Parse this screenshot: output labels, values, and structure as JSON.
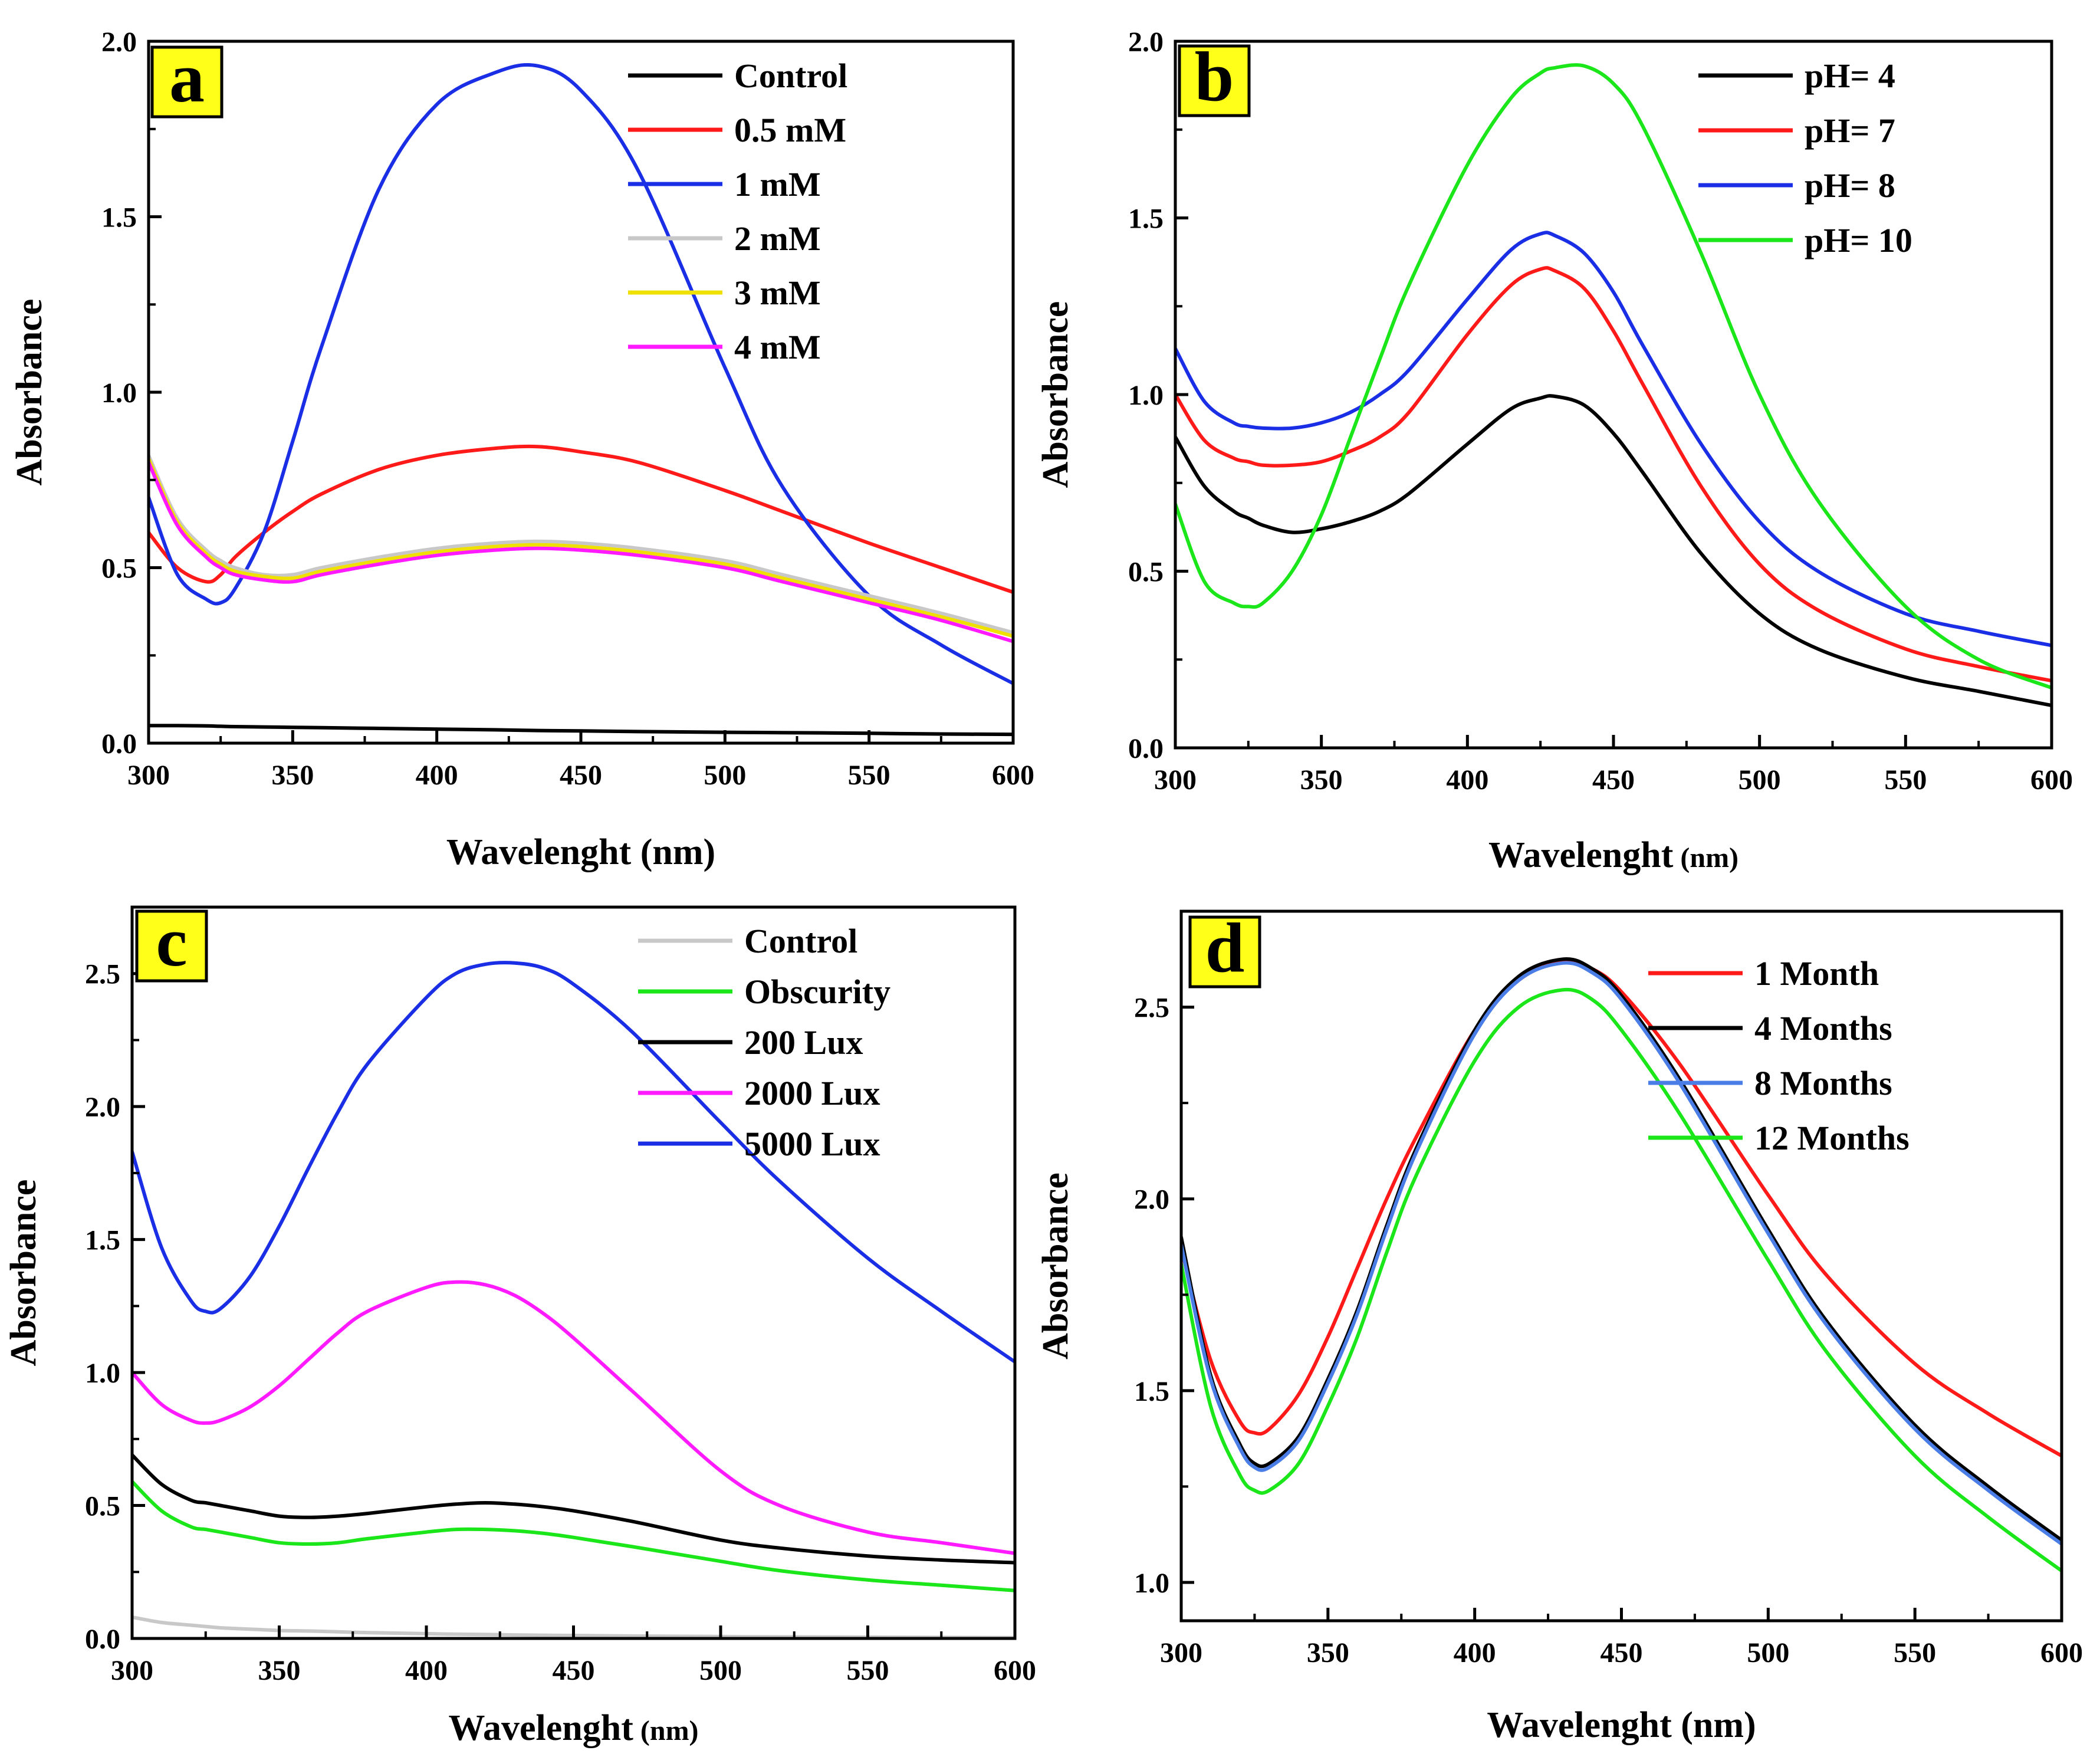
{
  "chart_data": [
    {
      "type": "line",
      "panel_label": "a",
      "xlabel": "Wavelenght (nm)",
      "xlabel_unit_small": false,
      "ylabel": "Absorbance",
      "xlim": [
        300,
        600
      ],
      "ylim": [
        0,
        2.0
      ],
      "x_ticks": [
        "300",
        "350",
        "400",
        "450",
        "500",
        "550",
        "600"
      ],
      "y_ticks": [
        "0.0",
        "0.5",
        "1.0",
        "1.5",
        "2.0"
      ],
      "legend_position": "top-right",
      "x": [
        300,
        310,
        320,
        325,
        330,
        340,
        350,
        360,
        380,
        400,
        420,
        435,
        450,
        470,
        500,
        520,
        550,
        575,
        600
      ],
      "series": [
        {
          "name": "Control",
          "color": "#000000",
          "values": [
            0.05,
            0.05,
            0.049,
            0.048,
            0.047,
            0.046,
            0.045,
            0.044,
            0.042,
            0.04,
            0.038,
            0.036,
            0.035,
            0.033,
            0.031,
            0.03,
            0.028,
            0.026,
            0.025
          ]
        },
        {
          "name": "0.5 mM",
          "color": "#ff1a1a",
          "values": [
            0.6,
            0.5,
            0.46,
            0.48,
            0.53,
            0.6,
            0.66,
            0.71,
            0.78,
            0.82,
            0.84,
            0.845,
            0.83,
            0.8,
            0.72,
            0.66,
            0.57,
            0.5,
            0.43
          ]
        },
        {
          "name": "1 mM",
          "color": "#1a2ee6",
          "values": [
            0.7,
            0.48,
            0.41,
            0.4,
            0.44,
            0.6,
            0.86,
            1.13,
            1.58,
            1.82,
            1.91,
            1.93,
            1.86,
            1.63,
            1.07,
            0.73,
            0.42,
            0.28,
            0.17
          ]
        },
        {
          "name": "2 mM",
          "color": "#c8c8c8",
          "values": [
            0.82,
            0.64,
            0.55,
            0.52,
            0.5,
            0.48,
            0.48,
            0.5,
            0.53,
            0.555,
            0.57,
            0.575,
            0.57,
            0.555,
            0.52,
            0.48,
            0.42,
            0.37,
            0.315
          ]
        },
        {
          "name": "3 mM",
          "color": "#f0e000",
          "values": [
            0.81,
            0.63,
            0.54,
            0.51,
            0.49,
            0.475,
            0.47,
            0.49,
            0.52,
            0.545,
            0.56,
            0.565,
            0.56,
            0.545,
            0.51,
            0.47,
            0.41,
            0.36,
            0.305
          ]
        },
        {
          "name": "4 mM",
          "color": "#ff1aff",
          "values": [
            0.8,
            0.62,
            0.53,
            0.5,
            0.48,
            0.465,
            0.46,
            0.48,
            0.51,
            0.535,
            0.55,
            0.555,
            0.55,
            0.535,
            0.5,
            0.46,
            0.4,
            0.35,
            0.29
          ]
        }
      ]
    },
    {
      "type": "line",
      "panel_label": "b",
      "xlabel": "Wavelenght",
      "xlabel_unit": "(nm)",
      "xlabel_unit_small": true,
      "ylabel": "Absorbance",
      "xlim": [
        300,
        600
      ],
      "ylim": [
        0,
        2.0
      ],
      "x_ticks": [
        "300",
        "350",
        "400",
        "450",
        "500",
        "550",
        "600"
      ],
      "y_ticks": [
        "0.0",
        "0.5",
        "1.0",
        "1.5",
        "2.0"
      ],
      "legend_position": "top-right",
      "x": [
        300,
        310,
        320,
        325,
        330,
        340,
        350,
        360,
        370,
        380,
        400,
        415,
        425,
        430,
        440,
        450,
        460,
        480,
        500,
        520,
        550,
        575,
        600
      ],
      "series": [
        {
          "name": "pH= 4",
          "color": "#000000",
          "values": [
            0.88,
            0.74,
            0.67,
            0.65,
            0.63,
            0.61,
            0.62,
            0.64,
            0.67,
            0.72,
            0.86,
            0.96,
            0.99,
            0.995,
            0.97,
            0.89,
            0.78,
            0.55,
            0.38,
            0.28,
            0.2,
            0.16,
            0.12
          ]
        },
        {
          "name": "pH= 7",
          "color": "#ff1a1a",
          "values": [
            1.0,
            0.87,
            0.82,
            0.81,
            0.8,
            0.8,
            0.81,
            0.84,
            0.88,
            0.95,
            1.17,
            1.31,
            1.355,
            1.35,
            1.3,
            1.18,
            1.03,
            0.74,
            0.52,
            0.39,
            0.28,
            0.23,
            0.19
          ]
        },
        {
          "name": "pH= 8",
          "color": "#1a2ee6",
          "values": [
            1.13,
            0.98,
            0.92,
            0.91,
            0.905,
            0.905,
            0.92,
            0.95,
            1.0,
            1.07,
            1.27,
            1.41,
            1.455,
            1.45,
            1.4,
            1.29,
            1.14,
            0.86,
            0.64,
            0.5,
            0.38,
            0.33,
            0.29
          ]
        },
        {
          "name": "pH= 10",
          "color": "#1ae61a",
          "values": [
            0.69,
            0.47,
            0.41,
            0.4,
            0.41,
            0.5,
            0.66,
            0.88,
            1.1,
            1.31,
            1.65,
            1.84,
            1.91,
            1.925,
            1.93,
            1.88,
            1.76,
            1.4,
            1.0,
            0.7,
            0.4,
            0.25,
            0.17
          ]
        }
      ]
    },
    {
      "type": "line",
      "panel_label": "c",
      "xlabel": "Wavelenght",
      "xlabel_unit": "(nm)",
      "xlabel_unit_small": true,
      "ylabel": "Absorbance",
      "xlim": [
        300,
        600
      ],
      "ylim": [
        0,
        2.75
      ],
      "x_ticks": [
        "300",
        "350",
        "400",
        "450",
        "500",
        "550",
        "600"
      ],
      "y_ticks": [
        "0.0",
        "0.5",
        "1.0",
        "1.5",
        "2.0",
        "2.5"
      ],
      "legend_position": "top-right",
      "x": [
        300,
        310,
        320,
        325,
        330,
        340,
        350,
        360,
        370,
        380,
        400,
        410,
        420,
        430,
        440,
        450,
        470,
        500,
        520,
        550,
        575,
        600
      ],
      "series": [
        {
          "name": "Control",
          "color": "#c8c8c8",
          "values": [
            0.08,
            0.06,
            0.05,
            0.045,
            0.04,
            0.035,
            0.03,
            0.028,
            0.025,
            0.022,
            0.018,
            0.016,
            0.015,
            0.013,
            0.012,
            0.011,
            0.009,
            0.007,
            0.006,
            0.005,
            0.004,
            0.003
          ]
        },
        {
          "name": "Obscurity",
          "color": "#1ae61a",
          "values": [
            0.59,
            0.48,
            0.42,
            0.41,
            0.4,
            0.38,
            0.36,
            0.355,
            0.36,
            0.375,
            0.4,
            0.41,
            0.41,
            0.405,
            0.395,
            0.38,
            0.345,
            0.29,
            0.255,
            0.22,
            0.2,
            0.18
          ]
        },
        {
          "name": "200 Lux",
          "color": "#000000",
          "values": [
            0.69,
            0.58,
            0.52,
            0.51,
            0.5,
            0.48,
            0.46,
            0.455,
            0.46,
            0.47,
            0.495,
            0.505,
            0.51,
            0.505,
            0.495,
            0.48,
            0.44,
            0.37,
            0.34,
            0.31,
            0.295,
            0.285
          ]
        },
        {
          "name": "2000 Lux",
          "color": "#ff1aff",
          "values": [
            1.0,
            0.88,
            0.82,
            0.81,
            0.82,
            0.87,
            0.95,
            1.05,
            1.15,
            1.23,
            1.32,
            1.34,
            1.33,
            1.29,
            1.22,
            1.13,
            0.93,
            0.63,
            0.5,
            0.4,
            0.36,
            0.32
          ]
        },
        {
          "name": "5000 Lux",
          "color": "#1a2ee6",
          "values": [
            1.83,
            1.47,
            1.27,
            1.23,
            1.24,
            1.36,
            1.55,
            1.77,
            1.98,
            2.16,
            2.41,
            2.5,
            2.535,
            2.54,
            2.52,
            2.46,
            2.28,
            1.94,
            1.72,
            1.43,
            1.23,
            1.04
          ]
        }
      ]
    },
    {
      "type": "line",
      "panel_label": "d",
      "xlabel": "Wavelenght  (nm)",
      "xlabel_unit_small": false,
      "ylabel": "Absorbance",
      "xlim": [
        300,
        600
      ],
      "ylim": [
        0.9,
        2.75
      ],
      "x_ticks": [
        "300",
        "350",
        "400",
        "450",
        "500",
        "550",
        "600"
      ],
      "y_ticks": [
        "1.0",
        "1.5",
        "2.0",
        "2.5"
      ],
      "legend_position": "top-right",
      "x": [
        300,
        310,
        320,
        325,
        330,
        340,
        350,
        360,
        370,
        380,
        400,
        415,
        430,
        440,
        450,
        470,
        500,
        520,
        550,
        575,
        600
      ],
      "series": [
        {
          "name": "1 Month",
          "color": "#ff1a1a",
          "values": [
            1.87,
            1.58,
            1.42,
            1.39,
            1.4,
            1.49,
            1.64,
            1.82,
            2.0,
            2.16,
            2.44,
            2.57,
            2.62,
            2.6,
            2.54,
            2.35,
            2.01,
            1.8,
            1.57,
            1.44,
            1.33
          ]
        },
        {
          "name": "4 Months",
          "color": "#000000",
          "values": [
            1.9,
            1.54,
            1.36,
            1.31,
            1.31,
            1.38,
            1.53,
            1.71,
            1.93,
            2.13,
            2.44,
            2.58,
            2.625,
            2.6,
            2.53,
            2.31,
            1.92,
            1.68,
            1.41,
            1.25,
            1.11
          ]
        },
        {
          "name": "8 Months",
          "color": "#4a7ee6",
          "values": [
            1.88,
            1.53,
            1.35,
            1.3,
            1.3,
            1.37,
            1.52,
            1.7,
            1.92,
            2.12,
            2.43,
            2.57,
            2.615,
            2.59,
            2.52,
            2.3,
            1.91,
            1.67,
            1.4,
            1.24,
            1.1
          ]
        },
        {
          "name": "12 Months",
          "color": "#1ae61a",
          "values": [
            1.83,
            1.46,
            1.28,
            1.24,
            1.24,
            1.31,
            1.46,
            1.64,
            1.86,
            2.06,
            2.36,
            2.5,
            2.545,
            2.52,
            2.44,
            2.22,
            1.84,
            1.6,
            1.33,
            1.17,
            1.03
          ]
        }
      ]
    }
  ]
}
